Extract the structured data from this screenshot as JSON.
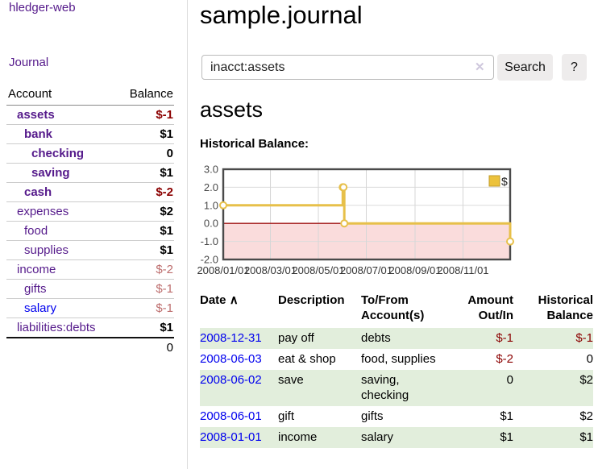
{
  "colors": {
    "link_purple": "#551a8b",
    "link_blue": "#0000ee",
    "negative_strong": "#8b0000",
    "negative_soft": "#bd6d6d",
    "zebra_green": "#e2eedc",
    "chart_line_gold": "#e7c04a",
    "chart_negative_fill": "#fadcdc",
    "chart_zero_line": "#a11414",
    "button_gray": "#eeecec"
  },
  "sidebar": {
    "app_title": "hledger-web",
    "nav_journal": "Journal",
    "table": {
      "account_header": "Account",
      "balance_header": "Balance",
      "rows": [
        {
          "name": "assets",
          "indent": 0,
          "emph": true,
          "balance": "$-1",
          "tone": "neg-strong",
          "link": "purple"
        },
        {
          "name": "bank",
          "indent": 1,
          "emph": true,
          "balance": "$1",
          "tone": "pos-strong",
          "link": "purple"
        },
        {
          "name": "checking",
          "indent": 2,
          "emph": true,
          "balance": "0",
          "tone": "pos-strong",
          "link": "purple"
        },
        {
          "name": "saving",
          "indent": 2,
          "emph": true,
          "balance": "$1",
          "tone": "pos-strong",
          "link": "purple"
        },
        {
          "name": "cash",
          "indent": 1,
          "emph": true,
          "balance": "$-2",
          "tone": "neg-strong",
          "link": "purple"
        },
        {
          "name": "expenses",
          "indent": 0,
          "emph": false,
          "balance": "$2",
          "tone": "pos",
          "link": "purple"
        },
        {
          "name": "food",
          "indent": 1,
          "emph": false,
          "balance": "$1",
          "tone": "pos",
          "link": "purple"
        },
        {
          "name": "supplies",
          "indent": 1,
          "emph": false,
          "balance": "$1",
          "tone": "pos",
          "link": "purple"
        },
        {
          "name": "income",
          "indent": 0,
          "emph": false,
          "balance": "$-2",
          "tone": "neg-soft",
          "link": "purple"
        },
        {
          "name": "gifts",
          "indent": 1,
          "emph": false,
          "balance": "$-1",
          "tone": "neg-soft",
          "link": "purple"
        },
        {
          "name": "salary",
          "indent": 1,
          "emph": false,
          "balance": "$-1",
          "tone": "neg-soft",
          "link": "blue"
        },
        {
          "name": "liabilities:debts",
          "indent": 0,
          "emph": false,
          "balance": "$1",
          "tone": "pos",
          "link": "purple"
        }
      ],
      "total": "0"
    }
  },
  "main": {
    "journal_title": "sample.journal",
    "search": {
      "value": "inacct:assets",
      "clear_icon": "✕",
      "search_button": "Search",
      "help_button": "?"
    },
    "account_heading": "assets",
    "section_label": "Historical Balance:"
  },
  "chart_data": {
    "type": "line",
    "style": "step-after",
    "title": "Historical Balance of assets",
    "series": [
      {
        "name": "$",
        "points": [
          [
            "2008-01-01",
            1
          ],
          [
            "2008-06-01",
            2
          ],
          [
            "2008-06-02",
            2
          ],
          [
            "2008-06-03",
            0
          ],
          [
            "2008-12-31",
            -1
          ]
        ]
      }
    ],
    "x_range": [
      "2008-01-01",
      "2008-12-31"
    ],
    "ylim": [
      -2,
      3
    ],
    "yticks": [
      {
        "v": 3,
        "label": "3.0"
      },
      {
        "v": 2,
        "label": "2.0"
      },
      {
        "v": 1,
        "label": "1.0"
      },
      {
        "v": 0,
        "label": "0.0"
      },
      {
        "v": -1,
        "label": "-1.0"
      },
      {
        "v": -2,
        "label": "-2.0"
      }
    ],
    "xticks": [
      {
        "date": "2008-01-01",
        "label": "2008/01/01"
      },
      {
        "date": "2008-03-01",
        "label": "2008/03/01"
      },
      {
        "date": "2008-05-01",
        "label": "2008/05/01"
      },
      {
        "date": "2008-07-01",
        "label": "2008/07/01"
      },
      {
        "date": "2008-09-01",
        "label": "2008/09/01"
      },
      {
        "date": "2008-11-01",
        "label": "2008/11/01"
      }
    ],
    "legend": {
      "position": "top-right",
      "entries": [
        "$"
      ]
    },
    "grid": true
  },
  "register": {
    "sort_icon": "∧",
    "headers": {
      "date": "Date",
      "description": "Description",
      "accounts": "To/From Account(s)",
      "amount": "Amount Out/In",
      "balance": "Historical Balance"
    },
    "rows": [
      {
        "date": "2008-12-31",
        "description": "pay off",
        "accounts": "debts",
        "amount": "$-1",
        "amount_neg": true,
        "balance": "$-1",
        "balance_neg": true
      },
      {
        "date": "2008-06-03",
        "description": "eat & shop",
        "accounts": "food, supplies",
        "amount": "$-2",
        "amount_neg": true,
        "balance": "0",
        "balance_neg": false
      },
      {
        "date": "2008-06-02",
        "description": "save",
        "accounts": "saving, checking",
        "amount": "0",
        "amount_neg": false,
        "balance": "$2",
        "balance_neg": false
      },
      {
        "date": "2008-06-01",
        "description": "gift",
        "accounts": "gifts",
        "amount": "$1",
        "amount_neg": false,
        "balance": "$2",
        "balance_neg": false
      },
      {
        "date": "2008-01-01",
        "description": "income",
        "accounts": "salary",
        "amount": "$1",
        "amount_neg": false,
        "balance": "$1",
        "balance_neg": false
      }
    ]
  }
}
